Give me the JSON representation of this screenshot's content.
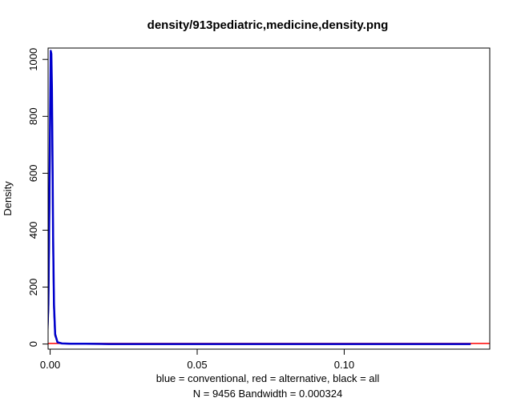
{
  "chart_data": {
    "type": "line",
    "title": "density/913pediatric,medicine,density.png",
    "xlabel": "blue = conventional, red = alternative, black = all",
    "sublabel": "N = 9456   Bandwidth = 0.000324",
    "ylabel": "Density",
    "xlim": [
      -0.0007,
      0.1495
    ],
    "ylim": [
      -18,
      1040
    ],
    "x_ticks": [
      0.0,
      0.05,
      0.1
    ],
    "x_tick_labels": [
      "0.00",
      "0.05",
      "0.10"
    ],
    "y_ticks": [
      0,
      200,
      400,
      600,
      800,
      1000
    ],
    "y_tick_labels": [
      "0",
      "200",
      "400",
      "600",
      "800",
      "1000"
    ],
    "grid": false,
    "series": [
      {
        "color": "#ff0000",
        "line_width": 1.5,
        "x": [
          -0.0007,
          0.01,
          0.03,
          0.06,
          0.09,
          0.12,
          0.1495
        ],
        "y": [
          2,
          2,
          2,
          2,
          2,
          2,
          2
        ]
      },
      {
        "color": "#000000",
        "line_width": 2,
        "x": [
          -0.001,
          -0.0006,
          -0.0003,
          0.0,
          0.0002,
          0.0004,
          0.0006,
          0.0008,
          0.001,
          0.0013,
          0.0017,
          0.0025,
          0.004,
          0.007,
          0.012,
          0.02,
          0.04,
          0.07,
          0.1,
          0.13,
          0.143
        ],
        "y": [
          20,
          130,
          420,
          780,
          980,
          1000,
          880,
          640,
          360,
          130,
          30,
          6,
          2,
          1,
          1,
          0,
          0,
          0,
          0,
          0,
          0
        ]
      },
      {
        "color": "#0000cd",
        "line_width": 2.5,
        "x": [
          -0.001,
          -0.0006,
          -0.0003,
          0.0,
          0.0002,
          0.0004,
          0.0006,
          0.0008,
          0.001,
          0.0013,
          0.0017,
          0.0025,
          0.004,
          0.007,
          0.012,
          0.02,
          0.04,
          0.07,
          0.1,
          0.13,
          0.143
        ],
        "y": [
          20,
          140,
          450,
          820,
          1030,
          1020,
          900,
          660,
          380,
          140,
          35,
          6,
          2,
          1,
          1,
          0,
          0,
          0,
          0,
          0,
          0
        ]
      }
    ]
  }
}
